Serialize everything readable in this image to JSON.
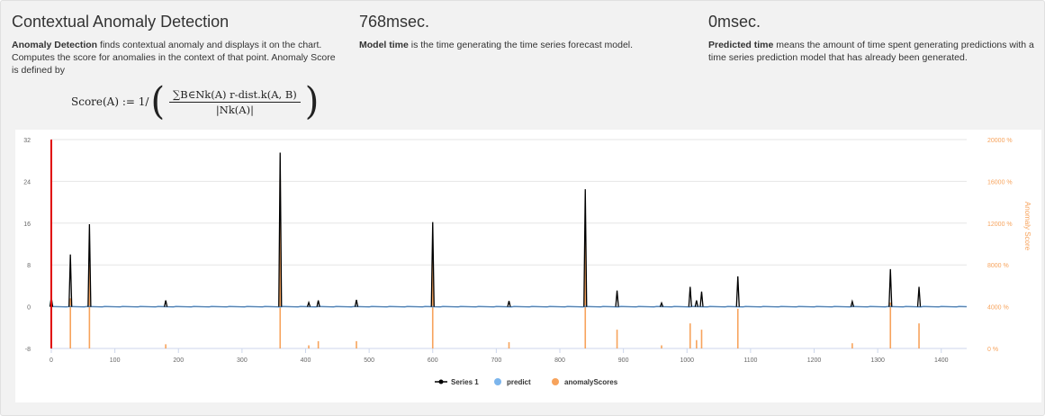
{
  "header": {
    "col1": {
      "title": "Contextual Anomaly Detection",
      "desc_bold": "Anomaly Detection",
      "desc_rest": " finds contextual anomaly and displays it on the chart. Computes the score for anomalies in the context of that point. Anomaly Score is defined by"
    },
    "col2": {
      "title": "768msec.",
      "desc_bold": "Model time",
      "desc_rest": " is the time generating the time series forecast model."
    },
    "col3": {
      "title": "0msec.",
      "desc_bold": "Predicted time",
      "desc_rest": " means the amount of time spent generating predictions with a time series prediction model that has already been generated."
    }
  },
  "formula": {
    "lhs": "Score(A) := 1/",
    "numerator": "∑B∈Nk(A) r-dist.k(A, B)",
    "denominator": "|Nk(A)|"
  },
  "colors": {
    "series1": "#000000",
    "predict": "#7cb5ec",
    "anomaly": "#f7a35c",
    "marker": "#e00000",
    "right_axis_text": "#f7a35c"
  },
  "chart_data": {
    "type": "line",
    "x_range": [
      0,
      1440
    ],
    "x_ticks": [
      0,
      100,
      200,
      300,
      400,
      500,
      600,
      700,
      800,
      900,
      1000,
      1100,
      1200,
      1300,
      1400
    ],
    "ylim_left": [
      -8,
      32
    ],
    "y_ticks_left": [
      -8,
      0,
      8,
      16,
      24,
      32
    ],
    "ylim_right": [
      0,
      20000
    ],
    "y_ticks_right": [
      0,
      4000,
      8000,
      12000,
      16000,
      20000
    ],
    "y_tick_labels_right": [
      "0 %",
      "4000 %",
      "8000 %",
      "12000 %",
      "16000 %",
      "20000 %"
    ],
    "right_axis_label": "Anomaly Score",
    "grid": true,
    "legend_position": "bottom-center",
    "red_marker_x": 0,
    "baseline_value": 0,
    "series": [
      {
        "name": "Series 1",
        "type": "line",
        "spikes": [
          {
            "x": 0,
            "y": 1.8
          },
          {
            "x": 30,
            "y": 10
          },
          {
            "x": 60,
            "y": 15.8
          },
          {
            "x": 180,
            "y": 1.2
          },
          {
            "x": 360,
            "y": 29.5
          },
          {
            "x": 405,
            "y": 0.8
          },
          {
            "x": 420,
            "y": 1.2
          },
          {
            "x": 480,
            "y": 1.3
          },
          {
            "x": 600,
            "y": 16.2
          },
          {
            "x": 720,
            "y": 1.1
          },
          {
            "x": 840,
            "y": 22.5
          },
          {
            "x": 890,
            "y": 3.1
          },
          {
            "x": 960,
            "y": 0.7
          },
          {
            "x": 1005,
            "y": 3.8
          },
          {
            "x": 1015,
            "y": 1.2
          },
          {
            "x": 1023,
            "y": 2.9
          },
          {
            "x": 1080,
            "y": 5.8
          },
          {
            "x": 1260,
            "y": 1.0
          },
          {
            "x": 1320,
            "y": 7.2
          },
          {
            "x": 1365,
            "y": 3.8
          }
        ]
      },
      {
        "name": "predict",
        "type": "line",
        "constant": 0
      },
      {
        "name": "anomalyScores",
        "type": "bar",
        "points": [
          {
            "x": 30,
            "y": 4800
          },
          {
            "x": 60,
            "y": 8000
          },
          {
            "x": 180,
            "y": 400
          },
          {
            "x": 360,
            "y": 16200
          },
          {
            "x": 405,
            "y": 300
          },
          {
            "x": 420,
            "y": 700
          },
          {
            "x": 480,
            "y": 700
          },
          {
            "x": 600,
            "y": 8400
          },
          {
            "x": 720,
            "y": 600
          },
          {
            "x": 840,
            "y": 10800
          },
          {
            "x": 890,
            "y": 1800
          },
          {
            "x": 960,
            "y": 300
          },
          {
            "x": 1005,
            "y": 2400
          },
          {
            "x": 1015,
            "y": 800
          },
          {
            "x": 1023,
            "y": 1800
          },
          {
            "x": 1080,
            "y": 3800
          },
          {
            "x": 1260,
            "y": 500
          },
          {
            "x": 1320,
            "y": 4400
          },
          {
            "x": 1365,
            "y": 2400
          }
        ]
      }
    ]
  }
}
